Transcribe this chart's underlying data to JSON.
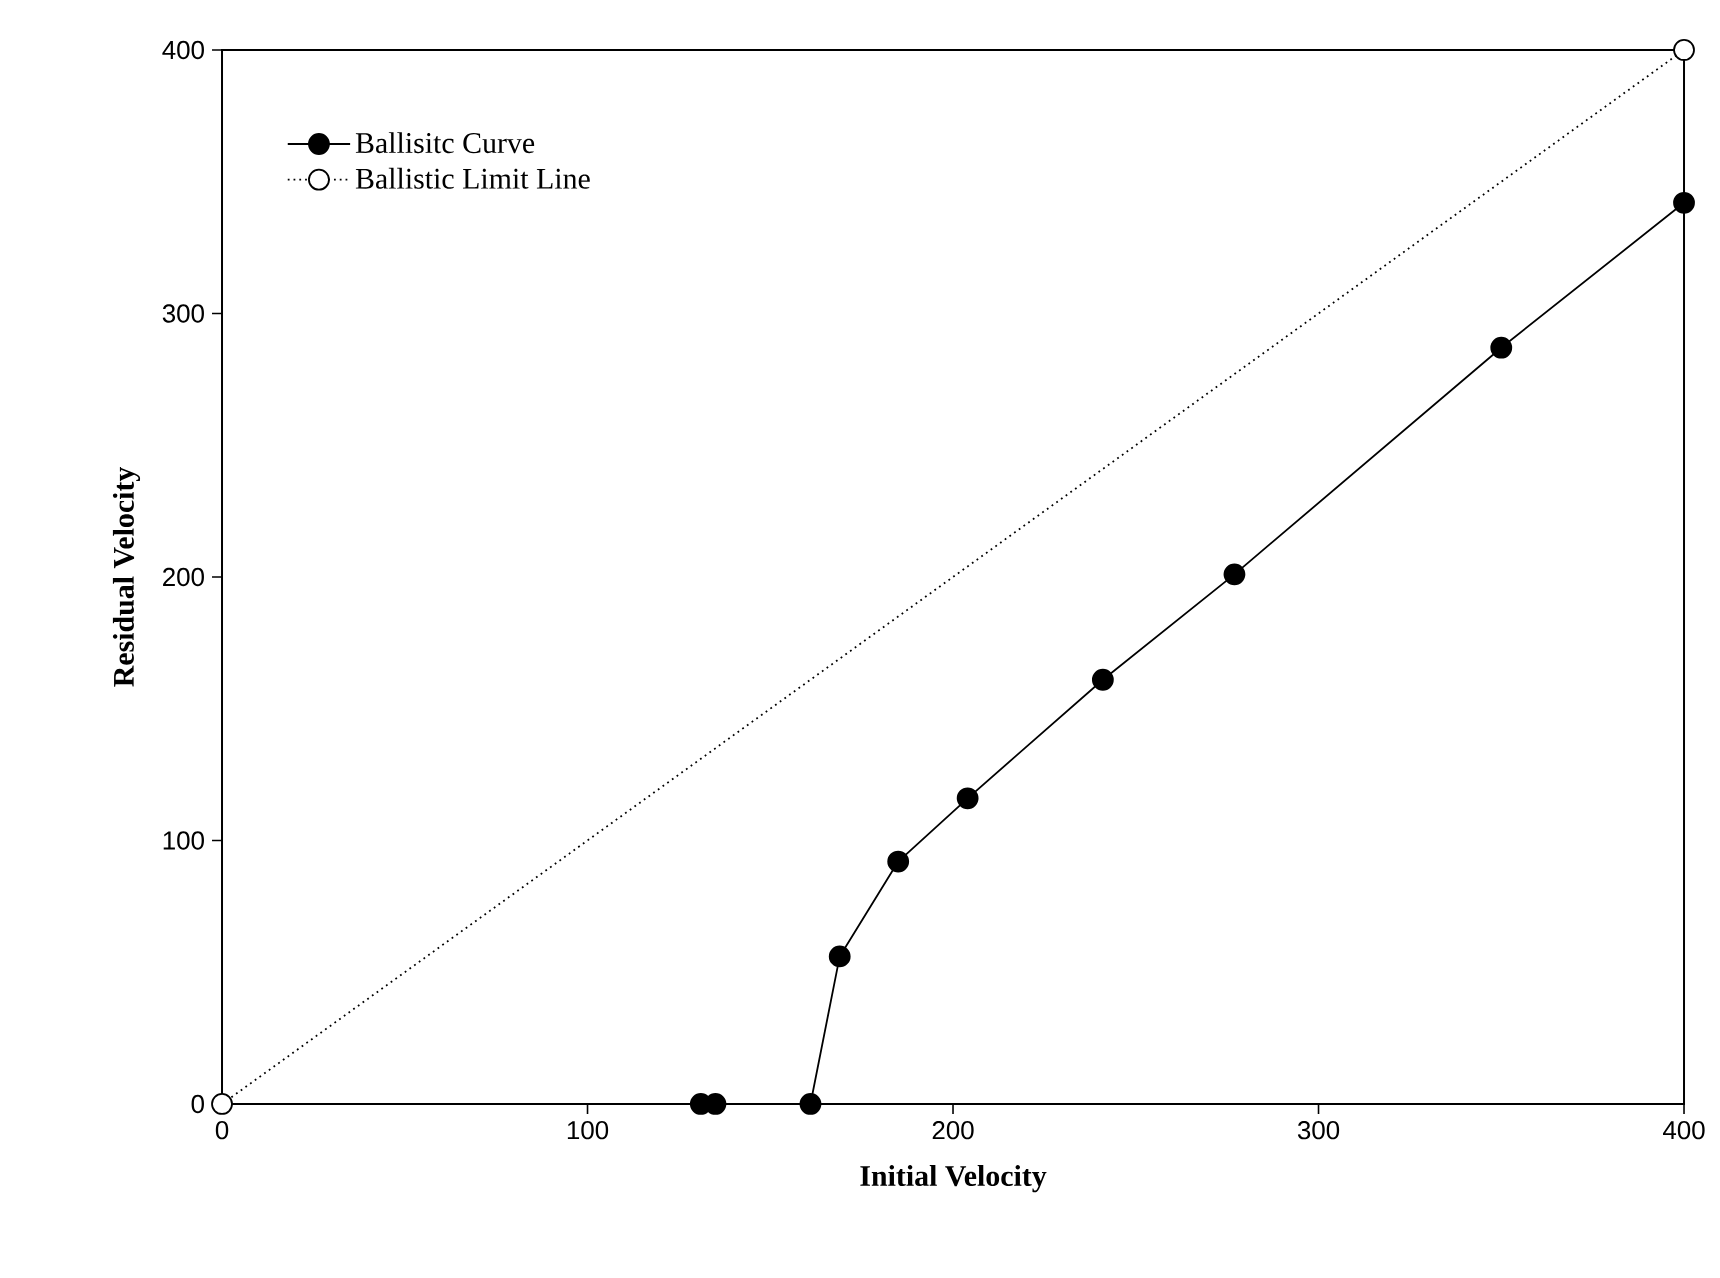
{
  "chart_data": {
    "type": "line",
    "xlabel": "Initial Velocity",
    "ylabel": "Residual Velocity",
    "xlim": [
      0,
      400
    ],
    "ylim": [
      0,
      400
    ],
    "xticks": [
      0,
      100,
      200,
      300,
      400
    ],
    "yticks": [
      0,
      100,
      200,
      300,
      400
    ],
    "legend": "top left",
    "grid": false,
    "series": [
      {
        "name": "Ballisitc Curve",
        "color": "#000000",
        "marker": "circle",
        "line_style": "solid",
        "x": [
          131,
          135,
          161,
          169,
          185,
          204,
          241,
          277,
          350,
          400
        ],
        "values": [
          0,
          0,
          0,
          56,
          92,
          116,
          161,
          201,
          287,
          342
        ]
      },
      {
        "name": "Ballistic Limit Line",
        "color": "#000000",
        "marker": "circle",
        "line_style": "dotted",
        "x": [
          0,
          400
        ],
        "values": [
          0,
          400
        ]
      }
    ]
  }
}
